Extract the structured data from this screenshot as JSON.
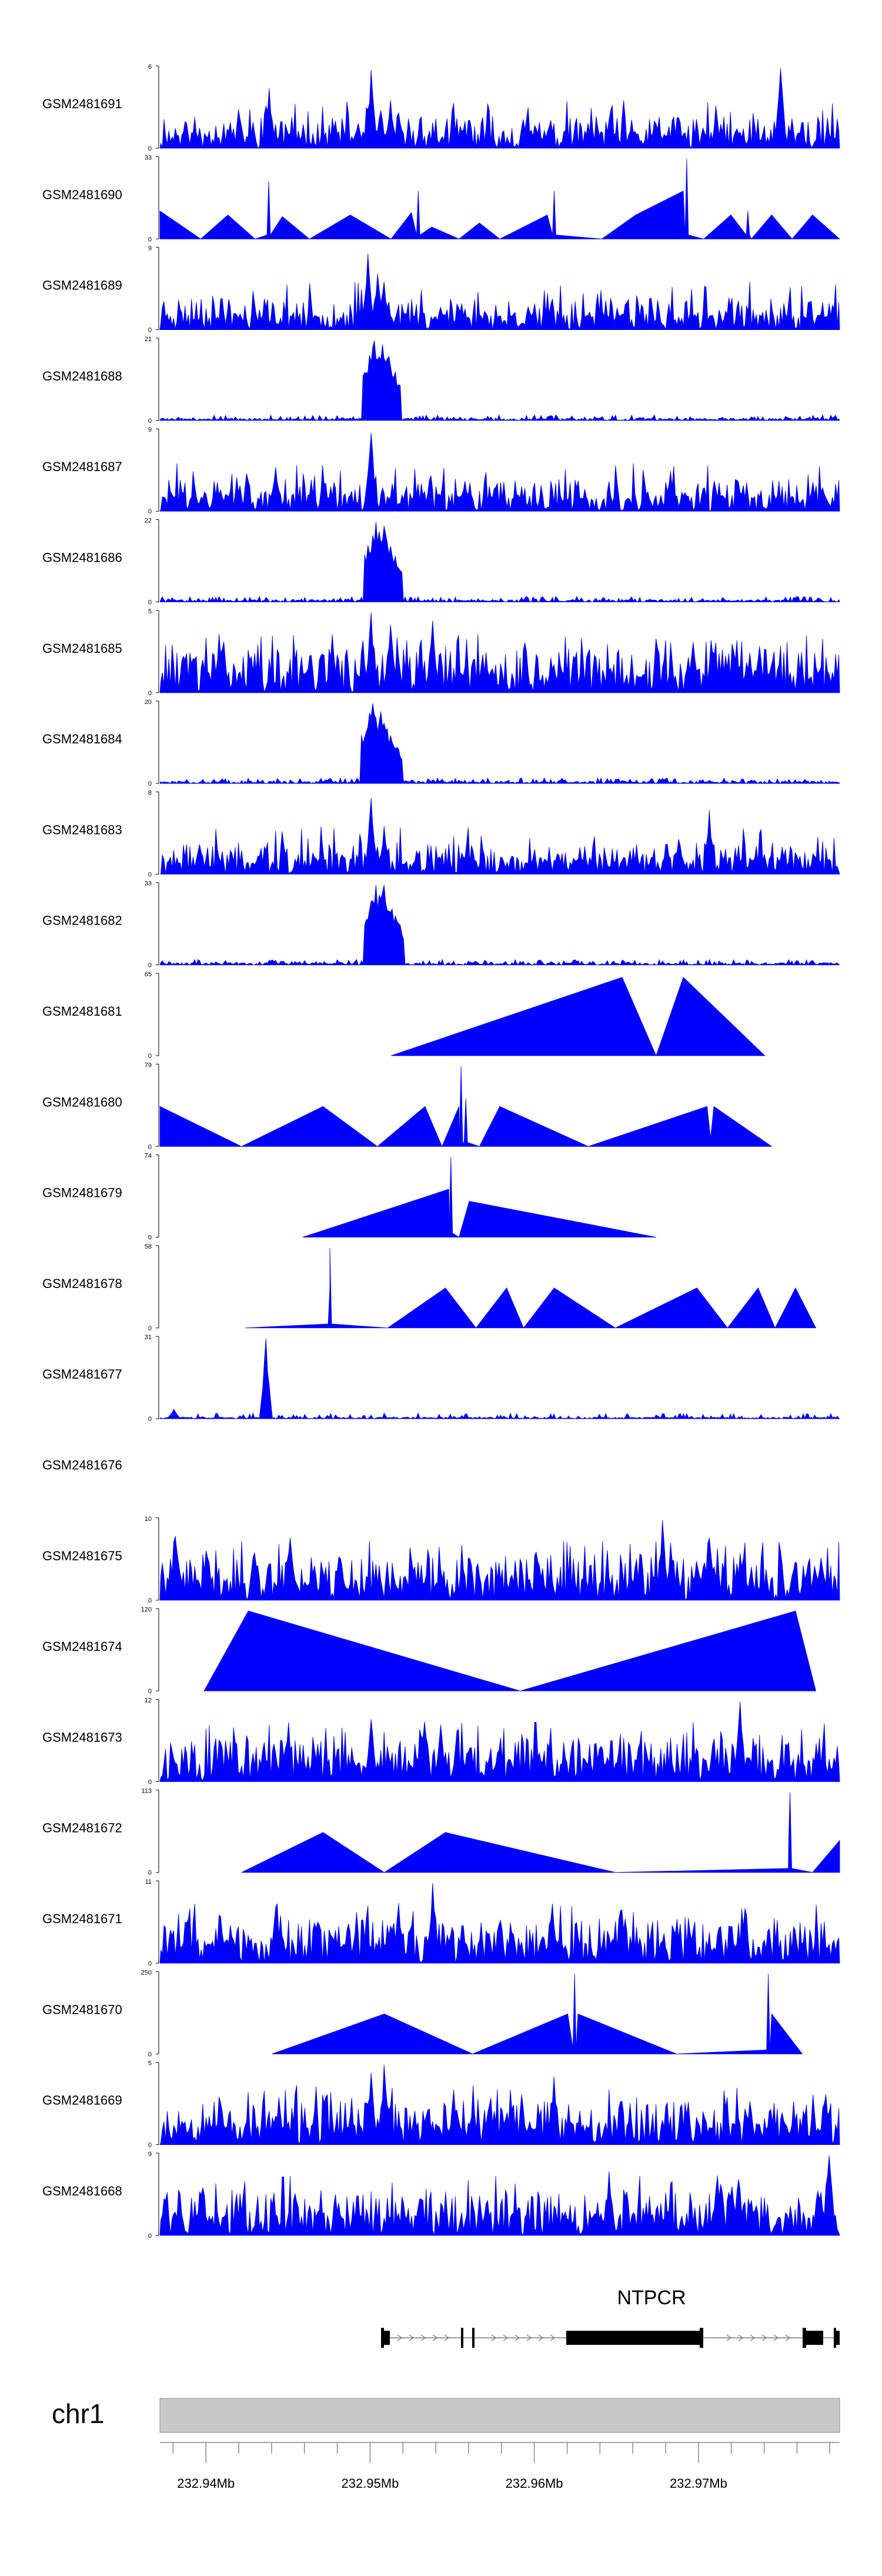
{
  "chart_data": {
    "type": "area",
    "chromosome": "chr1",
    "gene": "NTPCR",
    "genome_axis": {
      "xlim": [
        232.9372,
        232.9786
      ],
      "ticks": [
        "232.94Mb",
        "232.95Mb",
        "232.96Mb",
        "232.97Mb"
      ]
    },
    "colors": {
      "signal": "#0000ff",
      "gene_model": "#000000",
      "ideogram": "#c8c8c8"
    },
    "tracks": [
      {
        "name": "GSM2481691",
        "ymax": "6",
        "ymin": "0",
        "profile": "noisy",
        "seed": 11,
        "peaks": [
          [
            0.16,
            0.75
          ],
          [
            0.31,
            0.98
          ],
          [
            0.913,
            1.0
          ],
          [
            0.34,
            0.6
          ]
        ]
      },
      {
        "name": "GSM2481690",
        "ymax": "33",
        "ymin": "0",
        "profile": "sparse",
        "points": [
          [
            0,
            0.35
          ],
          [
            0.06,
            0
          ],
          [
            0.1,
            0.3
          ],
          [
            0.14,
            0
          ],
          [
            0.18,
            0.28
          ],
          [
            0.22,
            0
          ],
          [
            0.28,
            0.3
          ],
          [
            0.34,
            0
          ],
          [
            0.37,
            0.33
          ],
          [
            0.4,
            0.15
          ],
          [
            0.44,
            0
          ],
          [
            0.47,
            0.2
          ],
          [
            0.5,
            0
          ],
          [
            0.57,
            0.3
          ],
          [
            0.65,
            0
          ],
          [
            0.7,
            0.3
          ],
          [
            0.77,
            0.6
          ],
          [
            0.8,
            0
          ],
          [
            0.84,
            0.3
          ],
          [
            0.87,
            0
          ],
          [
            0.9,
            0.3
          ],
          [
            0.93,
            0
          ],
          [
            0.96,
            0.3
          ],
          [
            1,
            0
          ]
        ],
        "spikes": [
          [
            0.775,
            1.0
          ],
          [
            0.58,
            0.6
          ],
          [
            0.38,
            0.6
          ],
          [
            0.16,
            0.72
          ],
          [
            0.865,
            0.35
          ]
        ]
      },
      {
        "name": "GSM2481689",
        "ymax": "9",
        "ymin": "0",
        "profile": "noisy",
        "seed": 23,
        "peaks": [
          [
            0.305,
            0.95
          ],
          [
            0.32,
            0.7
          ],
          [
            0.33,
            0.6
          ]
        ]
      },
      {
        "name": "GSM2481688",
        "ymax": "21",
        "ymin": "0",
        "profile": "narrow",
        "seed": 5,
        "peaks": [
          [
            0.316,
            1.0
          ],
          [
            0.326,
            0.95
          ],
          [
            0.336,
            0.8
          ]
        ]
      },
      {
        "name": "GSM2481687",
        "ymax": "9",
        "ymin": "0",
        "profile": "noisy",
        "seed": 31,
        "peaks": [
          [
            0.31,
            0.98
          ],
          [
            0.752,
            0.5
          ],
          [
            0.17,
            0.55
          ]
        ]
      },
      {
        "name": "GSM2481686",
        "ymax": "22",
        "ymin": "0",
        "profile": "narrow",
        "seed": 7,
        "peaks": [
          [
            0.318,
            1.0
          ],
          [
            0.33,
            0.95
          ],
          [
            0.34,
            0.7
          ]
        ]
      },
      {
        "name": "GSM2481685",
        "ymax": "5",
        "ymin": "0",
        "profile": "spiky",
        "seed": 13,
        "peaks": [
          [
            0.31,
            1.0
          ],
          [
            0.4,
            0.9
          ],
          [
            0.34,
            0.85
          ]
        ]
      },
      {
        "name": "GSM2481684",
        "ymax": "20",
        "ymin": "0",
        "profile": "narrow",
        "seed": 17,
        "peaks": [
          [
            0.312,
            1.0
          ],
          [
            0.324,
            0.9
          ],
          [
            0.338,
            0.6
          ]
        ]
      },
      {
        "name": "GSM2481683",
        "ymax": "8",
        "ymin": "0",
        "profile": "noisy",
        "seed": 19,
        "peaks": [
          [
            0.31,
            0.95
          ],
          [
            0.81,
            0.8
          ],
          [
            0.33,
            0.6
          ]
        ]
      },
      {
        "name": "GSM2481682",
        "ymax": "33",
        "ymin": "0",
        "profile": "narrow",
        "seed": 29,
        "peaks": [
          [
            0.318,
            1.0
          ],
          [
            0.33,
            1.0
          ],
          [
            0.342,
            0.7
          ]
        ]
      },
      {
        "name": "GSM2481681",
        "ymax": "65",
        "ymin": "0",
        "profile": "sparse",
        "points": [
          [
            0.34,
            0
          ],
          [
            0.68,
            0.98
          ],
          [
            0.73,
            0
          ],
          [
            0.77,
            0.98
          ],
          [
            0.89,
            0
          ]
        ],
        "spikes": []
      },
      {
        "name": "GSM2481680",
        "ymax": "79",
        "ymin": "0",
        "profile": "sparse",
        "points": [
          [
            0,
            0.5
          ],
          [
            0.12,
            0
          ],
          [
            0.24,
            0.5
          ],
          [
            0.32,
            0
          ],
          [
            0.39,
            0.5
          ],
          [
            0.415,
            0
          ],
          [
            0.44,
            0.5
          ],
          [
            0.47,
            0
          ],
          [
            0.5,
            0.5
          ],
          [
            0.63,
            0
          ],
          [
            0.805,
            0.5
          ],
          [
            0.81,
            0.1
          ],
          [
            0.815,
            0.5
          ],
          [
            0.9,
            0
          ]
        ],
        "spikes": [
          [
            0.443,
            1.0
          ],
          [
            0.45,
            0.6
          ]
        ]
      },
      {
        "name": "GSM2481679",
        "ymax": "74",
        "ymin": "0",
        "profile": "sparse",
        "points": [
          [
            0.21,
            0
          ],
          [
            0.425,
            0.6
          ],
          [
            0.44,
            0
          ],
          [
            0.455,
            0.45
          ],
          [
            0.73,
            0
          ]
        ],
        "spikes": [
          [
            0.428,
            1.0
          ]
        ]
      },
      {
        "name": "GSM2481678",
        "ymax": "58",
        "ymin": "0",
        "profile": "sparse",
        "points": [
          [
            0.125,
            0
          ],
          [
            0.25,
            0.5
          ],
          [
            0.335,
            0
          ],
          [
            0.42,
            0.5
          ],
          [
            0.465,
            0
          ],
          [
            0.51,
            0.5
          ],
          [
            0.535,
            0
          ],
          [
            0.58,
            0.5
          ],
          [
            0.67,
            0
          ],
          [
            0.79,
            0.5
          ],
          [
            0.835,
            0
          ],
          [
            0.88,
            0.5
          ],
          [
            0.905,
            0
          ],
          [
            0.935,
            0.5
          ],
          [
            0.965,
            0
          ]
        ],
        "spikes": [
          [
            0.25,
            1.0
          ]
        ]
      },
      {
        "name": "GSM2481677",
        "ymax": "31",
        "ymin": "0",
        "profile": "lownoise",
        "seed": 37,
        "peaks": [
          [
            0.155,
            1.0
          ],
          [
            0.02,
            0.12
          ]
        ]
      },
      {
        "name": "GSM2481676",
        "ymax": "",
        "ymin": "",
        "profile": "empty"
      },
      {
        "name": "GSM2481675",
        "ymax": "10",
        "ymin": "0",
        "profile": "spiky",
        "seed": 41,
        "peaks": [
          [
            0.74,
            1.0
          ],
          [
            0.022,
            0.8
          ],
          [
            0.19,
            0.78
          ],
          [
            0.81,
            0.78
          ]
        ]
      },
      {
        "name": "GSM2481674",
        "ymax": "120",
        "ymin": "0",
        "profile": "sparse",
        "points": [
          [
            0.065,
            0
          ],
          [
            0.13,
            1.0
          ],
          [
            0.53,
            0
          ],
          [
            0.935,
            1.0
          ],
          [
            0.965,
            0
          ]
        ],
        "spikes": []
      },
      {
        "name": "GSM2481673",
        "ymax": "12",
        "ymin": "0",
        "profile": "spiky",
        "seed": 43,
        "peaks": [
          [
            0.855,
            1.0
          ],
          [
            0.31,
            0.78
          ],
          [
            0.39,
            0.75
          ]
        ]
      },
      {
        "name": "GSM2481672",
        "ymax": "113",
        "ymin": "0",
        "profile": "sparse",
        "points": [
          [
            0.12,
            0
          ],
          [
            0.24,
            0.5
          ],
          [
            0.33,
            0
          ],
          [
            0.42,
            0.5
          ],
          [
            0.67,
            0
          ],
          [
            0.925,
            0.4
          ],
          [
            0.96,
            0
          ],
          [
            1,
            0.4
          ]
        ],
        "spikes": [
          [
            0.927,
            1.0
          ]
        ]
      },
      {
        "name": "GSM2481671",
        "ymax": "11",
        "ymin": "0",
        "profile": "spiky",
        "seed": 47,
        "peaks": [
          [
            0.4,
            1.0
          ],
          [
            0.35,
            0.75
          ],
          [
            0.17,
            0.7
          ]
        ]
      },
      {
        "name": "GSM2481670",
        "ymax": "250",
        "ymin": "0",
        "profile": "sparse",
        "points": [
          [
            0.165,
            0
          ],
          [
            0.33,
            0.5
          ],
          [
            0.46,
            0
          ],
          [
            0.6,
            0.5
          ],
          [
            0.607,
            0.1
          ],
          [
            0.615,
            0.5
          ],
          [
            0.76,
            0
          ],
          [
            0.9,
            0.5
          ],
          [
            0.945,
            0
          ]
        ],
        "spikes": [
          [
            0.61,
            1.0
          ],
          [
            0.895,
            1.0
          ]
        ]
      },
      {
        "name": "GSM2481669",
        "ymax": "5",
        "ymin": "0",
        "profile": "spiky",
        "seed": 53,
        "peaks": [
          [
            0.33,
            1.0
          ],
          [
            0.31,
            0.9
          ],
          [
            0.58,
            0.85
          ]
        ]
      },
      {
        "name": "GSM2481668",
        "ymax": "9",
        "ymin": "0",
        "profile": "spiky",
        "seed": 59,
        "peaks": [
          [
            0.985,
            1.0
          ],
          [
            0.66,
            0.8
          ],
          [
            0.82,
            0.75
          ]
        ]
      }
    ]
  }
}
